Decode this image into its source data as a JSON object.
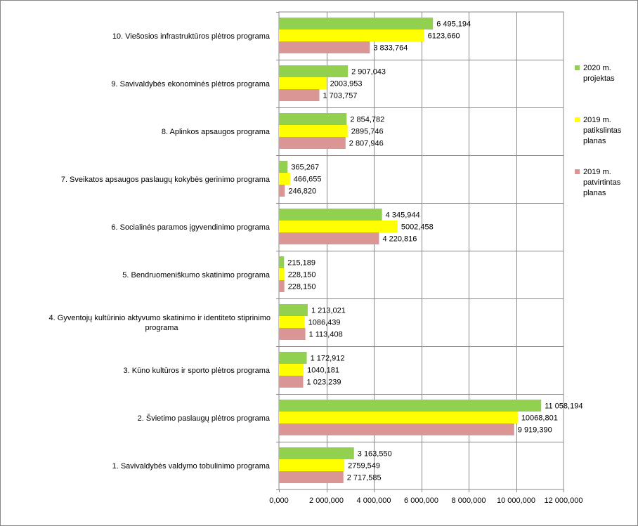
{
  "chart_data": {
    "type": "bar",
    "orientation": "horizontal",
    "categories": [
      "10. Viešosios infrastruktūros plėtros programa",
      "9. Savivaldybės ekonominės plėtros programa",
      "8. Aplinkos apsaugos programa",
      "7. Sveikatos apsaugos paslaugų kokybės gerinimo programa",
      "6. Socialinės paramos įgyvendinimo programa",
      "5. Bendruomeniškumo skatinimo programa",
      "4. Gyventojų kultūrinio aktyvumo skatinimo ir identiteto stiprinimo programa",
      "3. Kūno kultūros ir sporto plėtros programa",
      "2. Švietimo paslaugų plėtros programa",
      "1. Savivaldybės valdymo tobulinimo programa"
    ],
    "category_lines": [
      [
        "10. Viešosios infrastruktūros plėtros programa"
      ],
      [
        "9. Savivaldybės ekonominės plėtros programa"
      ],
      [
        "8. Aplinkos apsaugos programa"
      ],
      [
        "7. Sveikatos apsaugos paslaugų kokybės gerinimo programa"
      ],
      [
        "6. Socialinės paramos įgyvendinimo programa"
      ],
      [
        "5. Bendruomeniškumo skatinimo programa"
      ],
      [
        "4. Gyventojų kultūrinio aktyvumo skatinimo ir identiteto stiprinimo",
        "programa"
      ],
      [
        "3. Kūno kultūros ir sporto plėtros programa"
      ],
      [
        "2. Švietimo paslaugų plėtros programa"
      ],
      [
        "1. Savivaldybės valdymo tobulinimo programa"
      ]
    ],
    "series": [
      {
        "name": "2020 m. projektas",
        "legend_lines": [
          "2020 m.",
          "projektas"
        ],
        "color": "#92d050",
        "values": [
          6495194,
          2907043,
          2854782,
          365267,
          4345944,
          215189,
          1213021,
          1172912,
          11058194,
          3163550
        ],
        "labels": [
          "6 495,194",
          "2 907,043",
          "2 854,782",
          "365,267",
          "4 345,944",
          "215,189",
          "1 213,021",
          "1 172,912",
          "11 058,194",
          "3 163,550"
        ]
      },
      {
        "name": "2019 m. patikslintas planas",
        "legend_lines": [
          "2019 m.",
          "patikslintas",
          "planas"
        ],
        "color": "#ffff00",
        "values": [
          6123660,
          2003953,
          2895746,
          466655,
          5002458,
          228150,
          1086439,
          1040181,
          10068801,
          2759549
        ],
        "labels": [
          "6123,660",
          "2003,953",
          "2895,746",
          "466,655",
          "5002,458",
          "228,150",
          "1086,439",
          "1040,181",
          "10068,801",
          "2759,549"
        ]
      },
      {
        "name": "2019 m. patvirtintas planas",
        "legend_lines": [
          "2019 m.",
          "patvirtintas",
          "planas"
        ],
        "color": "#da9694",
        "values": [
          3833764,
          1703757,
          2807946,
          246820,
          4220816,
          228150,
          1113408,
          1023239,
          9919390,
          2717585
        ],
        "labels": [
          "3 833,764",
          "1 703,757",
          "2 807,946",
          "246,820",
          "4 220,816",
          "228,150",
          "1 113,408",
          "1 023,239",
          "9 919,390",
          "2 717,585"
        ]
      }
    ],
    "xlim": [
      0,
      12000000
    ],
    "xticks": [
      0,
      2000000,
      4000000,
      6000000,
      8000000,
      10000000,
      12000000
    ],
    "xtick_labels": [
      "0,000",
      "2 000,000",
      "4 000,000",
      "6 000,000",
      "8 000,000",
      "10 000,000",
      "12 000,000"
    ],
    "grid": true,
    "legend_position": "right",
    "title": "",
    "xlabel": "",
    "ylabel": ""
  }
}
